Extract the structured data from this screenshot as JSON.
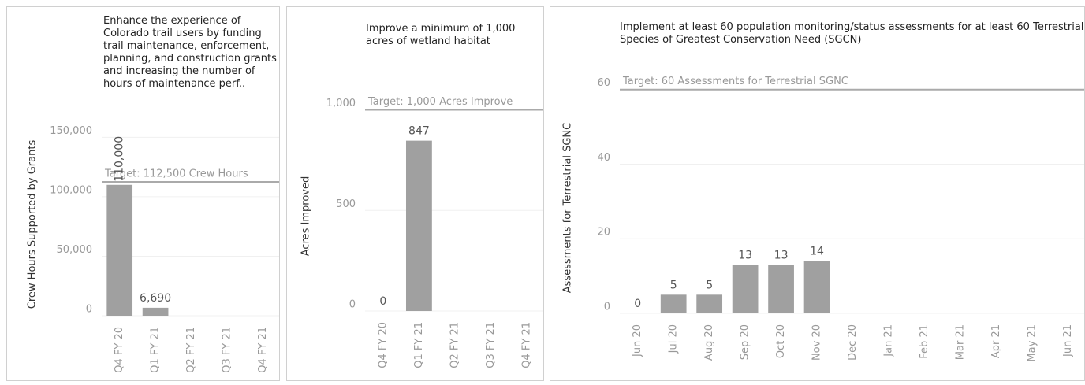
{
  "chart_data": [
    {
      "type": "bar",
      "title": "Enhance the experience of Colorado trail users by funding trail maintenance, enforcement, planning, and construction grants and increasing the number of hours of maintenance perf..",
      "y_label": "Crew Hours Supported by Grants",
      "categories": [
        "Q4 FY 20",
        "Q1 FY 21",
        "Q2 FY 21",
        "Q3 FY 21",
        "Q4 FY 21"
      ],
      "values": [
        110000,
        6690,
        null,
        null,
        null
      ],
      "value_labels": [
        "110,000",
        "6,690",
        null,
        null,
        null
      ],
      "color": "#a0a0a0",
      "ylim": [
        0,
        180000
      ],
      "yticks": [
        0,
        {
          "value": 50000,
          "label": "50,000"
        },
        {
          "value": 100000,
          "label": "100,000"
        },
        {
          "value": 150000,
          "label": "150,000"
        }
      ],
      "grid": true,
      "target": {
        "value": 112500,
        "label": "Target: 112,500 Crew Hours"
      }
    },
    {
      "type": "bar",
      "title": "Improve a minimum of 1,000 acres of wetland habitat",
      "y_label": "Acres Improved",
      "categories": [
        "Q4 FY 20",
        "Q1 FY 21",
        "Q2 FY 21",
        "Q3 FY 21",
        "Q4 FY 21"
      ],
      "values": [
        0,
        847,
        null,
        null,
        null
      ],
      "color": "#a0a0a0",
      "ylim": [
        0,
        1100
      ],
      "yticks": [
        0,
        500,
        {
          "value": 1000,
          "label": "1,000"
        }
      ],
      "grid": true,
      "target": {
        "value": 1000,
        "label": "Target: 1,000 Acres Improve"
      }
    },
    {
      "type": "bar",
      "title": "Implement at least 60 population monitoring/status assessments for at least 60 Terrestrial Species of Greatest Conservation Need (SGCN)",
      "y_label": "Assessments for Terrestrial SGNC",
      "categories": [
        "Jun 20",
        "Jul 20",
        "Aug 20",
        "Sep 20",
        "Oct 20",
        "Nov 20",
        "Dec 20",
        "Jan 21",
        "Feb 21",
        "Mar 21",
        "Apr 21",
        "May 21",
        "Jun 21"
      ],
      "values": [
        0,
        5,
        5,
        13,
        13,
        14,
        null,
        null,
        null,
        null,
        null,
        null,
        null
      ],
      "color": "#a0a0a0",
      "ylim": [
        0,
        65
      ],
      "yticks": [
        0,
        20,
        40,
        60
      ],
      "grid": true,
      "target": {
        "value": 60,
        "label": "Target: 60 Assessments for Terrestrial SGNC"
      }
    }
  ]
}
